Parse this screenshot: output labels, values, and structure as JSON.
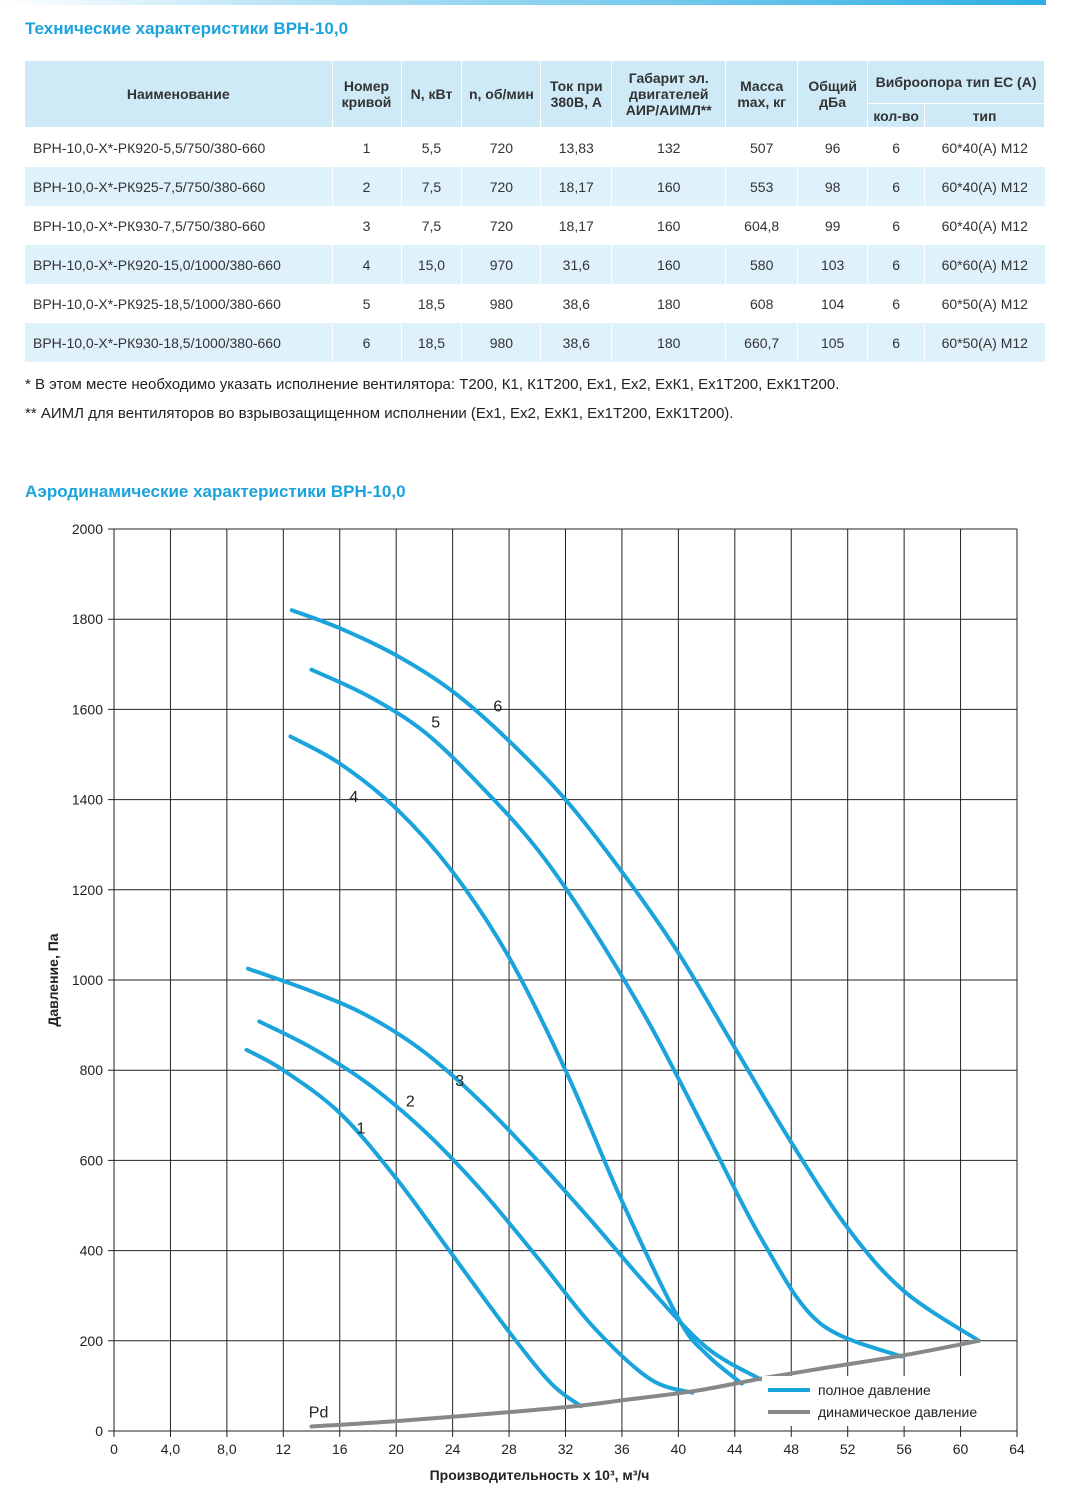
{
  "table_title": "Технические характеристики ВРН-10,0",
  "table": {
    "headers": {
      "name": "Наименование",
      "curve": "Номер кривой",
      "power": "N, кВт",
      "rpm": "n, об/мин",
      "current": "Ток при 380В, А",
      "motor": "Габарит эл. двигателей АИР/АИМЛ**",
      "mass": "Масса max, кг",
      "noise": "Общий дБа",
      "vibro": "Виброопора тип ЕС (А)",
      "vibro_count": "кол-во",
      "vibro_type": "тип"
    },
    "rows": [
      {
        "name": "ВРН-10,0-Х*-РК920-5,5/750/380-660",
        "curve": "1",
        "power": "5,5",
        "rpm": "720",
        "current": "13,83",
        "motor": "132",
        "mass": "507",
        "noise": "96",
        "count": "6",
        "type": "60*40(А) М12"
      },
      {
        "name": "ВРН-10,0-Х*-РК925-7,5/750/380-660",
        "curve": "2",
        "power": "7,5",
        "rpm": "720",
        "current": "18,17",
        "motor": "160",
        "mass": "553",
        "noise": "98",
        "count": "6",
        "type": "60*40(А) М12"
      },
      {
        "name": "ВРН-10,0-Х*-РК930-7,5/750/380-660",
        "curve": "3",
        "power": "7,5",
        "rpm": "720",
        "current": "18,17",
        "motor": "160",
        "mass": "604,8",
        "noise": "99",
        "count": "6",
        "type": "60*40(А) М12"
      },
      {
        "name": "ВРН-10,0-Х*-РК920-15,0/1000/380-660",
        "curve": "4",
        "power": "15,0",
        "rpm": "970",
        "current": "31,6",
        "motor": "160",
        "mass": "580",
        "noise": "103",
        "count": "6",
        "type": "60*60(А) М12"
      },
      {
        "name": "ВРН-10,0-Х*-РК925-18,5/1000/380-660",
        "curve": "5",
        "power": "18,5",
        "rpm": "980",
        "current": "38,6",
        "motor": "180",
        "mass": "608",
        "noise": "104",
        "count": "6",
        "type": "60*50(А) М12"
      },
      {
        "name": "ВРН-10,0-Х*-РК930-18,5/1000/380-660",
        "curve": "6",
        "power": "18,5",
        "rpm": "980",
        "current": "38,6",
        "motor": "180",
        "mass": "660,7",
        "noise": "105",
        "count": "6",
        "type": "60*50(А) М12"
      }
    ]
  },
  "notes": {
    "note1": "* В этом месте необходимо указать исполнение вентилятора: Т200, К1, К1Т200, Ех1, Ех2, ЕхК1, Ех1Т200, ЕхК1Т200.",
    "note2": "** АИМЛ для вентиляторов во взрывозащищенном исполнении (Ех1, Ех2, ЕхК1, Ех1Т200, ЕхК1Т200)."
  },
  "chart_title": "Аэродинамические характеристики ВРН-10,0",
  "colors": {
    "full_pressure": "#1ba3dc",
    "dynamic_pressure": "#888888",
    "grid": "#222222",
    "accent": "#1ba3dc"
  },
  "chart_data": {
    "type": "line",
    "xlabel": "Производительность х 10³, м³/ч",
    "ylabel": "Давление, Па",
    "xlim": [
      0,
      64
    ],
    "ylim": [
      0,
      2000
    ],
    "x_ticks": [
      0,
      4,
      8,
      12,
      16,
      20,
      24,
      28,
      32,
      36,
      40,
      44,
      48,
      52,
      56,
      60,
      64
    ],
    "x_tick_labels": [
      "0",
      "4,0",
      "8,0",
      "12",
      "16",
      "20",
      "24",
      "28",
      "32",
      "36",
      "40",
      "44",
      "48",
      "52",
      "56",
      "60",
      "64"
    ],
    "y_ticks": [
      0,
      200,
      400,
      600,
      800,
      1000,
      1200,
      1400,
      1600,
      1800,
      2000
    ],
    "y_tick_labels": [
      "0",
      "200",
      "400",
      "600",
      "800",
      "1000",
      "1200",
      "1400",
      "1600",
      "1800",
      "2000"
    ],
    "grid": true,
    "legend_position": "bottom-right",
    "legend": [
      "полное давление",
      "динамическое давление"
    ],
    "series": [
      {
        "name": "1",
        "kind": "full",
        "label_at": [
          17.5,
          660
        ],
        "points": [
          [
            9.4,
            845
          ],
          [
            12,
            800
          ],
          [
            16,
            705
          ],
          [
            20,
            560
          ],
          [
            24,
            390
          ],
          [
            28,
            220
          ],
          [
            31,
            105
          ],
          [
            33.1,
            55
          ]
        ]
      },
      {
        "name": "2",
        "kind": "full",
        "label_at": [
          21,
          720
        ],
        "points": [
          [
            10.3,
            908
          ],
          [
            14,
            850
          ],
          [
            18,
            770
          ],
          [
            22,
            665
          ],
          [
            26,
            535
          ],
          [
            30,
            385
          ],
          [
            34,
            230
          ],
          [
            38,
            115
          ],
          [
            41,
            85
          ]
        ]
      },
      {
        "name": "3",
        "kind": "full",
        "label_at": [
          24.5,
          765
        ],
        "points": [
          [
            9.5,
            1025
          ],
          [
            14,
            975
          ],
          [
            18,
            920
          ],
          [
            22,
            840
          ],
          [
            26,
            730
          ],
          [
            30,
            600
          ],
          [
            34,
            460
          ],
          [
            38,
            315
          ],
          [
            42,
            185
          ],
          [
            45.8,
            115
          ]
        ]
      },
      {
        "name": "4",
        "kind": "full",
        "label_at": [
          17,
          1395
        ],
        "points": [
          [
            12.5,
            1540
          ],
          [
            16,
            1480
          ],
          [
            20,
            1380
          ],
          [
            24,
            1240
          ],
          [
            28,
            1050
          ],
          [
            32,
            800
          ],
          [
            36,
            510
          ],
          [
            40,
            250
          ],
          [
            42,
            170
          ],
          [
            44.5,
            105
          ]
        ]
      },
      {
        "name": "5",
        "kind": "full",
        "label_at": [
          22.8,
          1560
        ],
        "points": [
          [
            14,
            1688
          ],
          [
            18,
            1630
          ],
          [
            22,
            1550
          ],
          [
            26,
            1430
          ],
          [
            30,
            1290
          ],
          [
            34,
            1110
          ],
          [
            38,
            900
          ],
          [
            42,
            660
          ],
          [
            46,
            420
          ],
          [
            50,
            240
          ],
          [
            55.8,
            165
          ]
        ]
      },
      {
        "name": "6",
        "kind": "full",
        "label_at": [
          27.2,
          1595
        ],
        "points": [
          [
            12.6,
            1820
          ],
          [
            16,
            1780
          ],
          [
            20,
            1720
          ],
          [
            24,
            1640
          ],
          [
            28,
            1530
          ],
          [
            32,
            1400
          ],
          [
            36,
            1240
          ],
          [
            40,
            1060
          ],
          [
            44,
            850
          ],
          [
            48,
            640
          ],
          [
            52,
            450
          ],
          [
            56,
            310
          ],
          [
            61.3,
            200
          ]
        ]
      },
      {
        "name": "Pd",
        "kind": "dynamic",
        "label_at": [
          14.5,
          30
        ],
        "points": [
          [
            14,
            10
          ],
          [
            20,
            22
          ],
          [
            28,
            42
          ],
          [
            33,
            56
          ],
          [
            36,
            68
          ],
          [
            41,
            88
          ],
          [
            44,
            105
          ],
          [
            46,
            117
          ],
          [
            50,
            138
          ],
          [
            56,
            168
          ],
          [
            61.3,
            200
          ]
        ]
      }
    ]
  }
}
